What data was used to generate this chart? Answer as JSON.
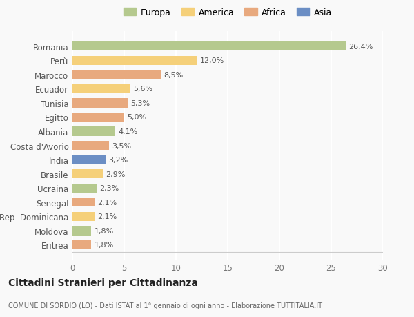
{
  "categories": [
    "Romania",
    "Perù",
    "Marocco",
    "Ecuador",
    "Tunisia",
    "Egitto",
    "Albania",
    "Costa d'Avorio",
    "India",
    "Brasile",
    "Ucraina",
    "Senegal",
    "Rep. Dominicana",
    "Moldova",
    "Eritrea"
  ],
  "values": [
    26.4,
    12.0,
    8.5,
    5.6,
    5.3,
    5.0,
    4.1,
    3.5,
    3.2,
    2.9,
    2.3,
    2.1,
    2.1,
    1.8,
    1.8
  ],
  "labels": [
    "26,4%",
    "12,0%",
    "8,5%",
    "5,6%",
    "5,3%",
    "5,0%",
    "4,1%",
    "3,5%",
    "3,2%",
    "2,9%",
    "2,3%",
    "2,1%",
    "2,1%",
    "1,8%",
    "1,8%"
  ],
  "colors": [
    "#b5c98e",
    "#f5d07a",
    "#e8a97e",
    "#f5d07a",
    "#e8a97e",
    "#e8a97e",
    "#b5c98e",
    "#e8a97e",
    "#6b8ec4",
    "#f5d07a",
    "#b5c98e",
    "#e8a97e",
    "#f5d07a",
    "#b5c98e",
    "#e8a97e"
  ],
  "legend_labels": [
    "Europa",
    "America",
    "Africa",
    "Asia"
  ],
  "legend_colors": [
    "#b5c98e",
    "#f5d07a",
    "#e8a97e",
    "#6b8ec4"
  ],
  "xlim": [
    0,
    30
  ],
  "xticks": [
    0,
    5,
    10,
    15,
    20,
    25,
    30
  ],
  "title": "Cittadini Stranieri per Cittadinanza",
  "subtitle": "COMUNE DI SORDIO (LO) - Dati ISTAT al 1° gennaio di ogni anno - Elaborazione TUTTITALIA.IT",
  "background_color": "#f9f9f9",
  "grid_color": "#ffffff",
  "bar_height": 0.65
}
